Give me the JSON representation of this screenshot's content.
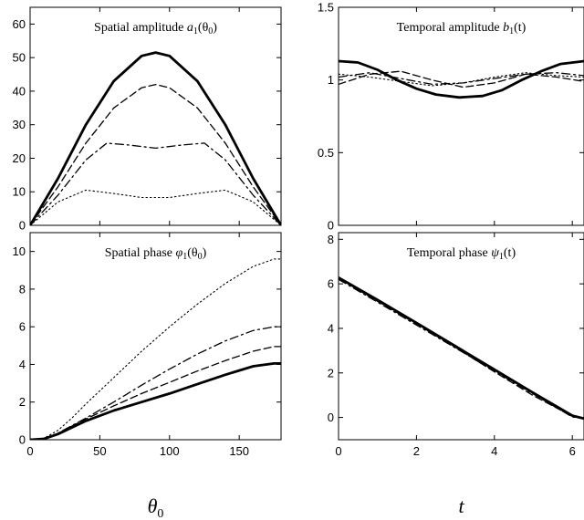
{
  "chart_data": [
    {
      "type": "line",
      "title": "Spatial amplitude a1(θ0)",
      "title_parts": {
        "text": "Spatial amplitude ",
        "math": "a",
        "sub": "1",
        "arg": "(θ",
        "argsub": "0",
        "close": ")"
      },
      "xlabel": "",
      "ylabel": "",
      "xlim": [
        0,
        180
      ],
      "ylim": [
        0,
        65
      ],
      "xticks": [
        0,
        50,
        100,
        150
      ],
      "yticks": [
        0,
        10,
        20,
        30,
        40,
        50,
        60
      ],
      "show_xtick_labels": false,
      "series": [
        {
          "style": "solid",
          "x": [
            0,
            20,
            40,
            60,
            80,
            90,
            100,
            120,
            140,
            160,
            180
          ],
          "y": [
            0,
            14,
            30,
            43,
            50.5,
            51.5,
            50.5,
            43,
            30,
            14,
            0
          ]
        },
        {
          "style": "dashed",
          "x": [
            0,
            20,
            40,
            60,
            80,
            90,
            100,
            120,
            140,
            160,
            180
          ],
          "y": [
            0,
            11.5,
            24.5,
            35,
            41,
            42,
            41,
            35,
            24.5,
            11.5,
            0
          ]
        },
        {
          "style": "dashdot",
          "x": [
            0,
            20,
            40,
            55,
            70,
            90,
            110,
            125,
            140,
            160,
            180
          ],
          "y": [
            0,
            9,
            19.5,
            24.5,
            24,
            23,
            24,
            24.5,
            19.5,
            9,
            0
          ]
        },
        {
          "style": "dotted",
          "x": [
            0,
            20,
            40,
            60,
            80,
            90,
            100,
            120,
            140,
            160,
            180
          ],
          "y": [
            0,
            7,
            10.5,
            9.5,
            8.3,
            8.3,
            8.3,
            9.5,
            10.5,
            7,
            0
          ]
        }
      ]
    },
    {
      "type": "line",
      "title": "Temporal amplitude b1(t)",
      "title_parts": {
        "text": "Temporal amplitude ",
        "math": "b",
        "sub": "1",
        "arg": "(t",
        "argsub": "",
        "close": ")"
      },
      "xlabel": "",
      "ylabel": "",
      "xlim": [
        0,
        6.3
      ],
      "ylim": [
        0,
        1.5
      ],
      "xticks": [
        0,
        2,
        4,
        6
      ],
      "yticks": [
        0,
        0.5,
        1,
        1.5
      ],
      "show_xtick_labels": false,
      "series": [
        {
          "style": "solid",
          "x": [
            0,
            0.5,
            1,
            1.5,
            2,
            2.5,
            3.1,
            3.7,
            4.2,
            4.7,
            5.2,
            5.7,
            6.3
          ],
          "y": [
            1.13,
            1.12,
            1.07,
            1.0,
            0.94,
            0.9,
            0.88,
            0.89,
            0.93,
            1.0,
            1.06,
            1.11,
            1.13
          ]
        },
        {
          "style": "dashed",
          "x": [
            0,
            0.8,
            1.6,
            2.4,
            3.2,
            4.0,
            4.8,
            5.6,
            6.3
          ],
          "y": [
            0.97,
            1.04,
            1.06,
            1.0,
            0.95,
            0.98,
            1.04,
            1.02,
            0.99
          ]
        },
        {
          "style": "dashdot",
          "x": [
            0,
            0.8,
            1.6,
            2.4,
            3.2,
            4.0,
            4.8,
            5.6,
            6.3
          ],
          "y": [
            1.02,
            1.05,
            1.01,
            0.97,
            0.98,
            1.01,
            1.04,
            1.05,
            1.03
          ]
        },
        {
          "style": "dotted",
          "x": [
            0,
            0.8,
            1.6,
            2.4,
            3.2,
            4.0,
            4.8,
            5.6,
            6.3
          ],
          "y": [
            1.04,
            1.02,
            0.99,
            0.96,
            0.98,
            1.02,
            1.05,
            1.03,
            1.02
          ]
        }
      ]
    },
    {
      "type": "line",
      "title": "Spatial phase φ1(θ0)",
      "title_parts": {
        "text": "Spatial phase ",
        "math": "φ",
        "sub": "1",
        "arg": "(θ",
        "argsub": "0",
        "close": ")"
      },
      "xlabel": "θ0",
      "xlabel_parts": {
        "math": "θ",
        "sub": "0"
      },
      "ylabel": "",
      "xlim": [
        0,
        180
      ],
      "ylim": [
        0,
        11
      ],
      "xticks": [
        0,
        50,
        100,
        150
      ],
      "yticks": [
        0,
        2,
        4,
        6,
        8,
        10
      ],
      "show_xtick_labels": true,
      "series": [
        {
          "style": "solid",
          "x": [
            0,
            10,
            20,
            30,
            40,
            60,
            80,
            100,
            120,
            140,
            160,
            175,
            180
          ],
          "y": [
            0,
            0.05,
            0.3,
            0.65,
            1.0,
            1.55,
            2.0,
            2.45,
            2.95,
            3.45,
            3.9,
            4.05,
            4.05
          ]
        },
        {
          "style": "dashed",
          "x": [
            0,
            10,
            20,
            30,
            40,
            60,
            80,
            100,
            120,
            140,
            160,
            175,
            180
          ],
          "y": [
            0,
            0.05,
            0.35,
            0.72,
            1.1,
            1.8,
            2.45,
            3.05,
            3.65,
            4.2,
            4.7,
            4.95,
            4.95
          ]
        },
        {
          "style": "dashdot",
          "x": [
            0,
            10,
            20,
            30,
            40,
            60,
            80,
            100,
            120,
            140,
            160,
            175,
            180
          ],
          "y": [
            0,
            0.05,
            0.35,
            0.75,
            1.15,
            2.0,
            2.9,
            3.75,
            4.55,
            5.25,
            5.8,
            6.0,
            6.0
          ]
        },
        {
          "style": "dotted",
          "x": [
            0,
            10,
            20,
            30,
            40,
            60,
            80,
            100,
            120,
            140,
            160,
            175,
            180
          ],
          "y": [
            0,
            0.08,
            0.5,
            1.15,
            1.9,
            3.3,
            4.7,
            6.0,
            7.2,
            8.3,
            9.2,
            9.6,
            9.6
          ]
        }
      ]
    },
    {
      "type": "line",
      "title": "Temporal phase ψ1(t)",
      "title_parts": {
        "text": "Temporal phase ",
        "math": "ψ",
        "sub": "1",
        "arg": "(t",
        "argsub": "",
        "close": ")"
      },
      "xlabel": "t",
      "xlabel_parts": {
        "math": "t",
        "sub": ""
      },
      "ylabel": "",
      "xlim": [
        0,
        6.3
      ],
      "ylim": [
        -1,
        8.3
      ],
      "xticks": [
        0,
        2,
        4,
        6
      ],
      "yticks": [
        0,
        2,
        4,
        6,
        8
      ],
      "show_xtick_labels": true,
      "series": [
        {
          "style": "solid",
          "x": [
            0,
            1,
            2,
            3,
            4,
            5,
            6,
            6.3
          ],
          "y": [
            6.28,
            5.28,
            4.25,
            3.2,
            2.15,
            1.1,
            0.08,
            -0.05
          ]
        },
        {
          "style": "dashed",
          "x": [
            0,
            1,
            2,
            3,
            4,
            5,
            6,
            6.3
          ],
          "y": [
            6.25,
            5.22,
            4.2,
            3.15,
            2.05,
            0.98,
            0.05,
            -0.05
          ]
        },
        {
          "style": "dashdot",
          "x": [
            0,
            1,
            2,
            3,
            4,
            5,
            6,
            6.3
          ],
          "y": [
            6.2,
            5.18,
            4.15,
            3.12,
            2.08,
            1.05,
            0.02,
            -0.05
          ]
        },
        {
          "style": "dotted",
          "x": [
            0,
            1,
            2,
            3,
            4,
            5,
            6,
            6.3
          ],
          "y": [
            6.28,
            5.25,
            4.22,
            3.18,
            2.12,
            1.08,
            0.06,
            -0.05
          ]
        }
      ]
    }
  ]
}
